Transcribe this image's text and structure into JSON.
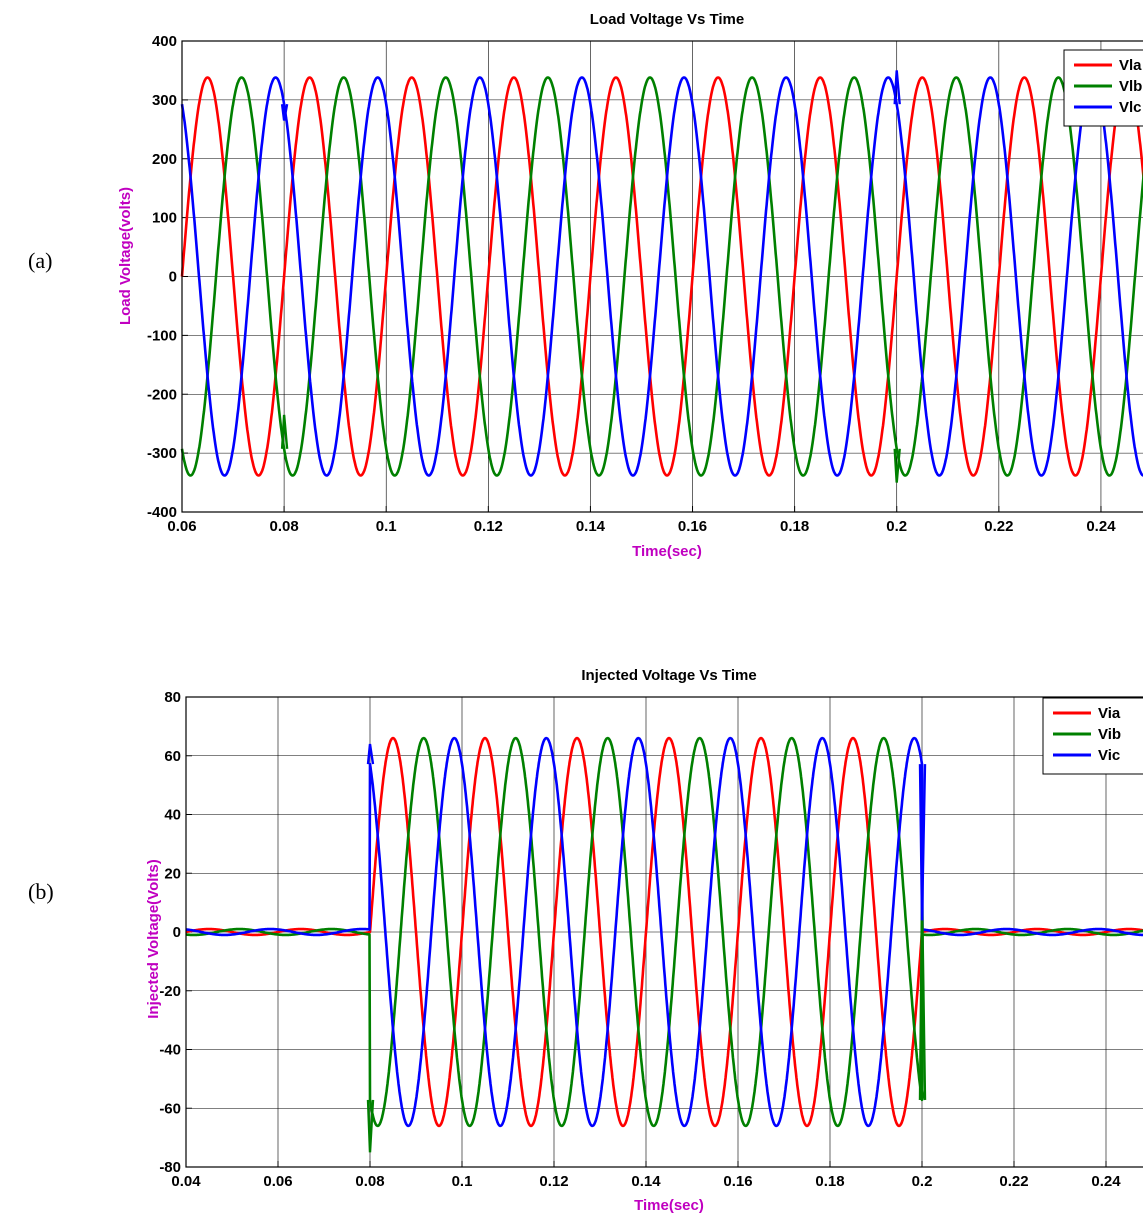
{
  "panels": [
    {
      "label": "(a)"
    },
    {
      "label": "(b)"
    }
  ],
  "chart_data": [
    {
      "type": "line",
      "title": "Load Voltage Vs Time",
      "xlabel": "Time(sec)",
      "ylabel": "Load Voltage(volts)",
      "xlim": [
        0.06,
        0.25
      ],
      "ylim": [
        -400,
        400
      ],
      "xticks": [
        0.06,
        0.08,
        0.1,
        0.12,
        0.14,
        0.16,
        0.18,
        0.2,
        0.22,
        0.24
      ],
      "xtick_labels": [
        "0.06",
        "0.08",
        "0.1",
        "0.12",
        "0.14",
        "0.16",
        "0.18",
        "0.2",
        "0.22",
        "0.24"
      ],
      "yticks": [
        -400,
        -300,
        -200,
        -100,
        0,
        100,
        200,
        300,
        400
      ],
      "ytick_labels": [
        "-400",
        "-300",
        "-200",
        "-100",
        "0",
        "100",
        "200",
        "300",
        "400"
      ],
      "grid": true,
      "legend": "top-right",
      "waveform": {
        "amplitude": 338,
        "frequency_hz": 50,
        "sampling_step_sec": 0.0001
      },
      "series": [
        {
          "name": "Vla",
          "color": "#ff0000",
          "phase_deg": 0
        },
        {
          "name": "Vlb",
          "color": "#008000",
          "phase_deg": -120
        },
        {
          "name": "Vlc",
          "color": "#0000ff",
          "phase_deg": 120
        }
      ],
      "transients": [
        {
          "time": 0.08,
          "series": "Vlc",
          "value": 265
        },
        {
          "time": 0.08,
          "series": "Vlb",
          "value": -235
        },
        {
          "time": 0.2,
          "series": "Vlc",
          "value": 350
        },
        {
          "time": 0.2,
          "series": "Vlb",
          "value": -350
        }
      ]
    },
    {
      "type": "line",
      "title": "Injected Voltage Vs Time",
      "xlabel": "Time(sec)",
      "ylabel": "Injected Voltage(Volts)",
      "xlim": [
        0.04,
        0.25
      ],
      "ylim": [
        -80,
        80
      ],
      "xticks": [
        0.04,
        0.06,
        0.08,
        0.1,
        0.12,
        0.14,
        0.16,
        0.18,
        0.2,
        0.22,
        0.24
      ],
      "xtick_labels": [
        "0.04",
        "0.06",
        "0.08",
        "0.1",
        "0.12",
        "0.14",
        "0.16",
        "0.18",
        "0.2",
        "0.22",
        "0.24"
      ],
      "yticks": [
        -80,
        -60,
        -40,
        -20,
        0,
        20,
        40,
        60,
        80
      ],
      "ytick_labels": [
        "-80",
        "-60",
        "-40",
        "-20",
        "0",
        "20",
        "40",
        "60",
        "80"
      ],
      "grid": true,
      "legend": "top-right",
      "waveform": {
        "amplitude": 66,
        "frequency_hz": 50,
        "active_interval_sec": [
          0.08,
          0.2
        ],
        "idle_ripple": 1,
        "sampling_step_sec": 0.0001
      },
      "series": [
        {
          "name": "Via",
          "color": "#ff0000",
          "phase_deg": 0
        },
        {
          "name": "Vib",
          "color": "#008000",
          "phase_deg": -120
        },
        {
          "name": "Vic",
          "color": "#0000ff",
          "phase_deg": 120
        }
      ],
      "transients": [
        {
          "time": 0.08,
          "series": "Vic",
          "value": 64
        },
        {
          "time": 0.08,
          "series": "Vib",
          "value": -75
        },
        {
          "time": 0.2,
          "series": "Vib",
          "value": 13
        },
        {
          "time": 0.2,
          "series": "Vib",
          "value": -54
        },
        {
          "time": 0.2,
          "series": "Vic",
          "value": 4
        }
      ]
    }
  ]
}
